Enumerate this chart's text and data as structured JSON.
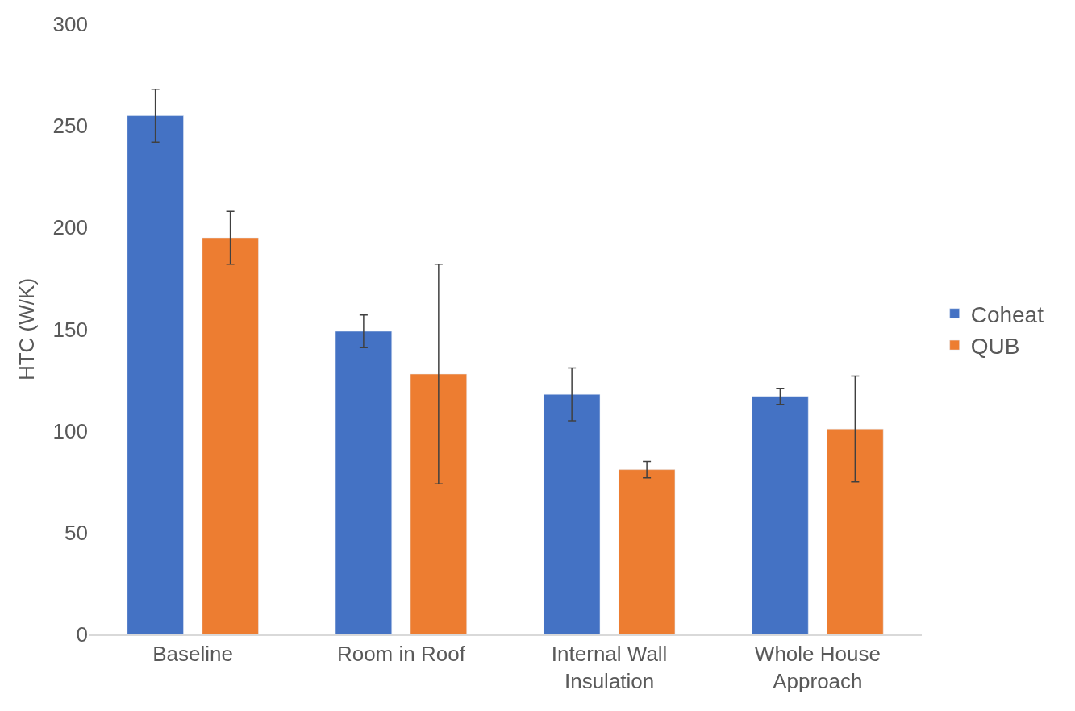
{
  "chart_data": {
    "type": "bar",
    "ylabel": "HTC (W/K)",
    "categories": [
      "Baseline",
      "Room in Roof",
      "Internal Wall Insulation",
      "Whole House Approach"
    ],
    "series": [
      {
        "name": "Coheat",
        "color": "#4472c4",
        "values": [
          255,
          149,
          118,
          117
        ],
        "errors": [
          13,
          8,
          13,
          4
        ]
      },
      {
        "name": "QUB",
        "color": "#ed7d31",
        "values": [
          195,
          128,
          81,
          101
        ],
        "errors": [
          13,
          54,
          4,
          26
        ]
      }
    ],
    "ylim": [
      0,
      300
    ],
    "yticks": [
      0,
      50,
      100,
      150,
      200,
      250,
      300
    ],
    "grid": false,
    "legend": "right"
  }
}
